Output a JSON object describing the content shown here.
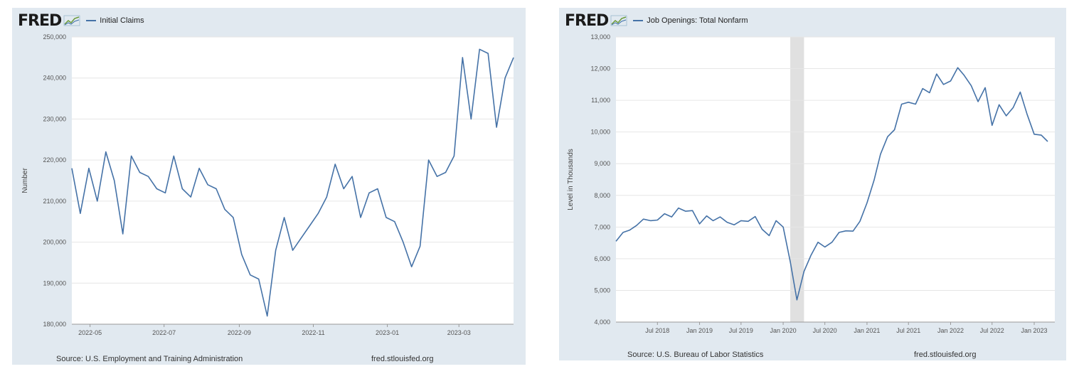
{
  "charts": [
    {
      "logo": "FRED",
      "legend": "Initial Claims",
      "source": "Source: U.S. Employment and Training Administration",
      "url": "fred.stlouisfed.org",
      "line_color": "#4572a7"
    },
    {
      "logo": "FRED",
      "legend": "Job Openings: Total Nonfarm",
      "source": "Source: U.S. Bureau of Labor Statistics",
      "url": "fred.stlouisfed.org",
      "line_color": "#4572a7",
      "recession_color": "#e0e0e0"
    }
  ],
  "chart_data": [
    {
      "type": "line",
      "title": "",
      "xlabel": "",
      "ylabel": "Number",
      "ylim": [
        180000,
        250000
      ],
      "yticks": [
        180000,
        190000,
        200000,
        210000,
        220000,
        230000,
        240000,
        250000
      ],
      "ytick_labels": [
        "180,000",
        "190,000",
        "200,000",
        "210,000",
        "220,000",
        "230,000",
        "240,000",
        "250,000"
      ],
      "xlim": [
        "2022-04-16",
        "2023-04-15"
      ],
      "xticks": [
        "2022-05-01",
        "2022-07-01",
        "2022-09-01",
        "2022-11-01",
        "2023-01-01",
        "2023-03-01"
      ],
      "xtick_labels": [
        "2022-05",
        "2022-07",
        "2022-09",
        "2022-11",
        "2023-01",
        "2023-03"
      ],
      "grid": true,
      "series": [
        {
          "name": "Initial Claims",
          "x": [
            "2022-04-16",
            "2022-04-23",
            "2022-04-30",
            "2022-05-07",
            "2022-05-14",
            "2022-05-21",
            "2022-05-28",
            "2022-06-04",
            "2022-06-11",
            "2022-06-18",
            "2022-06-25",
            "2022-07-02",
            "2022-07-09",
            "2022-07-16",
            "2022-07-23",
            "2022-07-30",
            "2022-08-06",
            "2022-08-13",
            "2022-08-20",
            "2022-08-27",
            "2022-09-03",
            "2022-09-10",
            "2022-09-17",
            "2022-09-24",
            "2022-10-01",
            "2022-10-08",
            "2022-10-15",
            "2022-10-22",
            "2022-10-29",
            "2022-11-05",
            "2022-11-12",
            "2022-11-19",
            "2022-11-26",
            "2022-12-03",
            "2022-12-10",
            "2022-12-17",
            "2022-12-24",
            "2022-12-31",
            "2023-01-07",
            "2023-01-14",
            "2023-01-21",
            "2023-01-28",
            "2023-02-04",
            "2023-02-11",
            "2023-02-18",
            "2023-02-25",
            "2023-03-04",
            "2023-03-11",
            "2023-03-18",
            "2023-03-25",
            "2023-04-01",
            "2023-04-08",
            "2023-04-15"
          ],
          "values": [
            218000,
            207000,
            218000,
            210000,
            222000,
            215000,
            202000,
            221000,
            217000,
            216000,
            213000,
            212000,
            221000,
            213000,
            211000,
            218000,
            214000,
            213000,
            208000,
            206000,
            197000,
            192000,
            191000,
            182000,
            198000,
            206000,
            198000,
            201000,
            204000,
            207000,
            211000,
            219000,
            213000,
            216000,
            206000,
            212000,
            213000,
            206000,
            205000,
            200000,
            194000,
            199000,
            220000,
            216000,
            217000,
            221000,
            245000,
            230000,
            247000,
            246000,
            228000,
            240000,
            245000
          ]
        }
      ]
    },
    {
      "type": "line",
      "title": "",
      "xlabel": "",
      "ylabel": "Level in Thousands",
      "ylim": [
        4000,
        13000
      ],
      "yticks": [
        4000,
        5000,
        6000,
        7000,
        8000,
        9000,
        10000,
        11000,
        12000,
        13000
      ],
      "ytick_labels": [
        "4,000",
        "5,000",
        "6,000",
        "7,000",
        "8,000",
        "9,000",
        "10,000",
        "11,000",
        "12,000",
        "13,000"
      ],
      "xlim": [
        "2018-01-01",
        "2023-04-01"
      ],
      "xticks": [
        "2018-07-01",
        "2019-01-01",
        "2019-07-01",
        "2020-01-01",
        "2020-07-01",
        "2021-01-01",
        "2021-07-01",
        "2022-01-01",
        "2022-07-01",
        "2023-01-01"
      ],
      "xtick_labels": [
        "Jul 2018",
        "Jan 2019",
        "Jul 2019",
        "Jan 2020",
        "Jul 2020",
        "Jan 2021",
        "Jul 2021",
        "Jan 2022",
        "Jul 2022",
        "Jan 2023"
      ],
      "recession": [
        "2020-02-01",
        "2020-04-01"
      ],
      "grid": true,
      "series": [
        {
          "name": "Job Openings: Total Nonfarm",
          "x": [
            "2018-01-01",
            "2018-02-01",
            "2018-03-01",
            "2018-04-01",
            "2018-05-01",
            "2018-06-01",
            "2018-07-01",
            "2018-08-01",
            "2018-09-01",
            "2018-10-01",
            "2018-11-01",
            "2018-12-01",
            "2019-01-01",
            "2019-02-01",
            "2019-03-01",
            "2019-04-01",
            "2019-05-01",
            "2019-06-01",
            "2019-07-01",
            "2019-08-01",
            "2019-09-01",
            "2019-10-01",
            "2019-11-01",
            "2019-12-01",
            "2020-01-01",
            "2020-02-01",
            "2020-03-01",
            "2020-04-01",
            "2020-05-01",
            "2020-06-01",
            "2020-07-01",
            "2020-08-01",
            "2020-09-01",
            "2020-10-01",
            "2020-11-01",
            "2020-12-01",
            "2021-01-01",
            "2021-02-01",
            "2021-03-01",
            "2021-04-01",
            "2021-05-01",
            "2021-06-01",
            "2021-07-01",
            "2021-08-01",
            "2021-09-01",
            "2021-10-01",
            "2021-11-01",
            "2021-12-01",
            "2022-01-01",
            "2022-02-01",
            "2022-03-01",
            "2022-04-01",
            "2022-05-01",
            "2022-06-01",
            "2022-07-01",
            "2022-08-01",
            "2022-09-01",
            "2022-10-01",
            "2022-11-01",
            "2022-12-01",
            "2023-01-01",
            "2023-02-01",
            "2023-03-01"
          ],
          "values": [
            6550,
            6830,
            6900,
            7050,
            7250,
            7200,
            7220,
            7420,
            7320,
            7600,
            7500,
            7520,
            7100,
            7350,
            7200,
            7320,
            7150,
            7070,
            7200,
            7180,
            7330,
            6930,
            6730,
            7200,
            7000,
            5900,
            4700,
            5600,
            6100,
            6520,
            6370,
            6520,
            6830,
            6880,
            6870,
            7180,
            7760,
            8480,
            9300,
            9850,
            10070,
            10880,
            10940,
            10880,
            11370,
            11240,
            11830,
            11500,
            11610,
            12030,
            11790,
            11460,
            10960,
            11400,
            10210,
            10860,
            10510,
            10770,
            11260,
            10560,
            9930,
            9900,
            9700
          ]
        }
      ]
    }
  ]
}
